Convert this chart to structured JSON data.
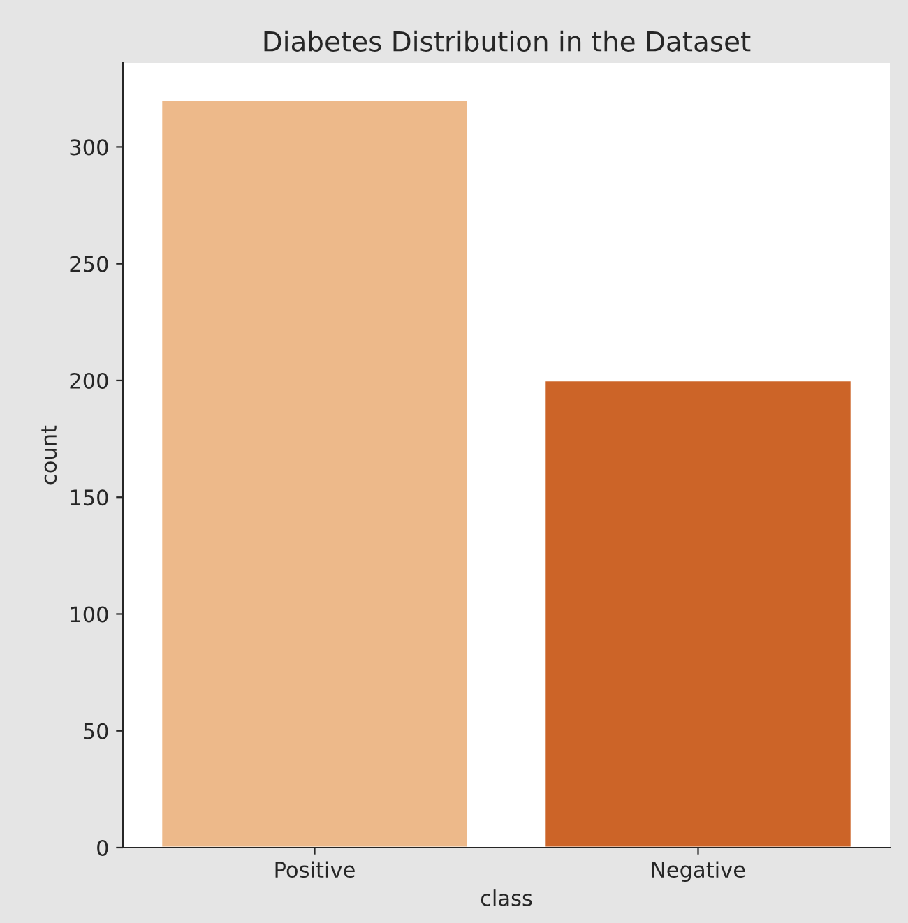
{
  "chart_data": {
    "type": "bar",
    "title": "Diabetes Distribution in the Dataset",
    "xlabel": "class",
    "ylabel": "count",
    "categories": [
      "Positive",
      "Negative"
    ],
    "values": [
      320,
      200
    ],
    "colors": [
      "#edb98a",
      "#cc6428"
    ],
    "ylim": [
      0,
      336
    ],
    "yticks": [
      0,
      50,
      100,
      150,
      200,
      250,
      300
    ],
    "grid": false
  }
}
